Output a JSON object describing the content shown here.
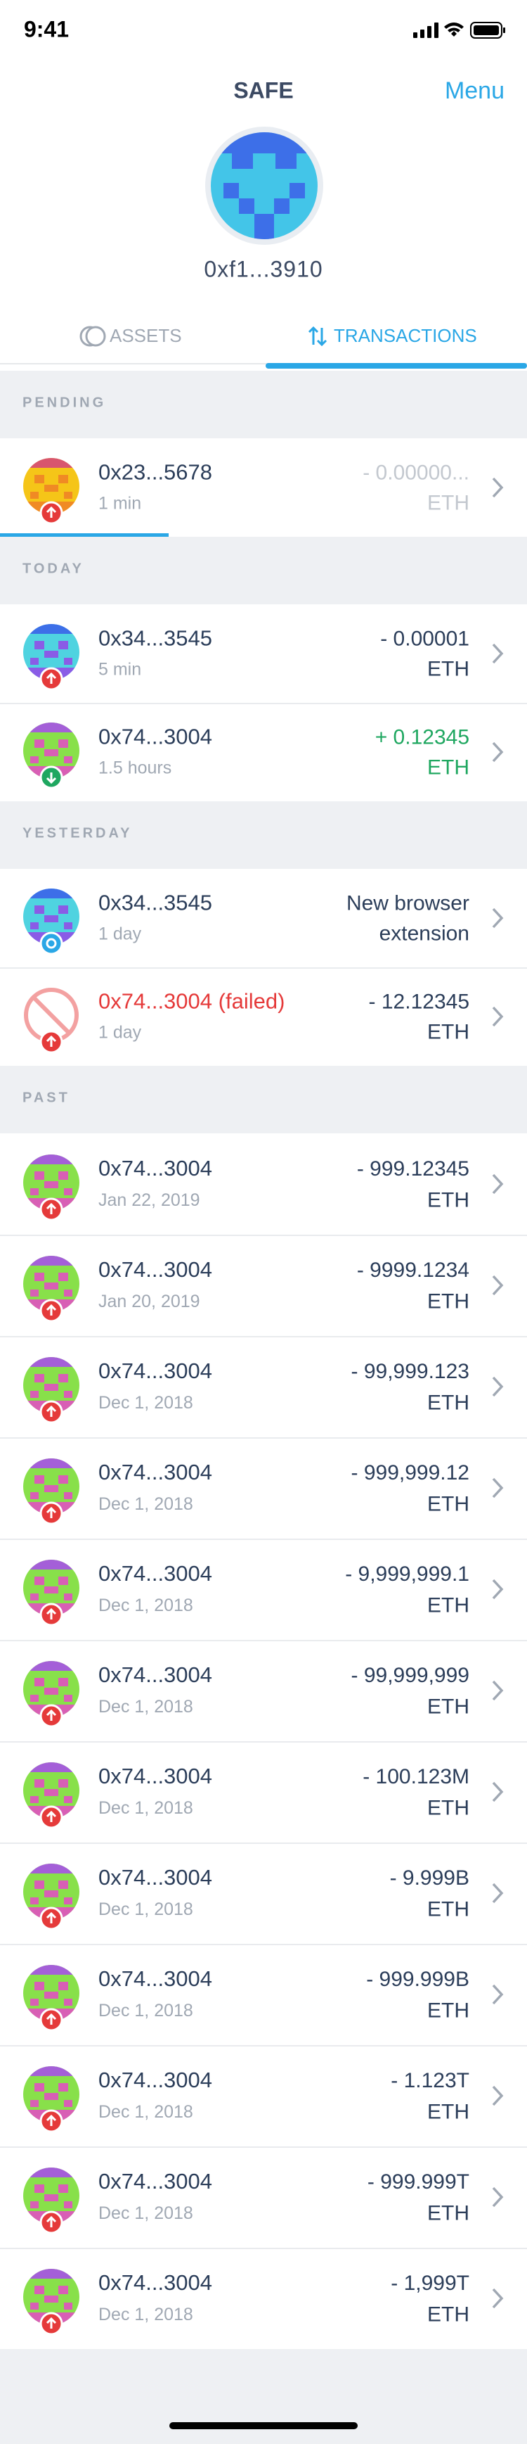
{
  "status_bar": {
    "time": "9:41"
  },
  "header": {
    "title": "SAFE",
    "menu": "Menu",
    "address": "0xf1...3910"
  },
  "tabs": [
    "ASSETS",
    "TRANSACTIONS"
  ],
  "sections": [
    {
      "label": "PENDING",
      "rows": [
        {
          "title": "0x23...5678",
          "subtitle": "1 min",
          "amount": [
            "- 0.00000...",
            "ETH"
          ]
        }
      ]
    },
    {
      "label": "TODAY",
      "rows": [
        {
          "title": "0x34...3545",
          "subtitle": "5 min",
          "amount": [
            "- 0.00001",
            "ETH"
          ]
        },
        {
          "title": "0x74...3004",
          "subtitle": "1.5 hours",
          "amount": [
            "+ 0.12345",
            "ETH"
          ]
        }
      ]
    },
    {
      "label": "YESTERDAY",
      "rows": [
        {
          "title": "0x34...3545",
          "subtitle": "1 day",
          "amount": [
            "New browser",
            "extension"
          ]
        },
        {
          "title": "0x74...3004 (failed)",
          "subtitle": "1 day",
          "amount": [
            "- 12.12345",
            "ETH"
          ]
        }
      ]
    },
    {
      "label": "PAST",
      "rows": [
        {
          "title": "0x74...3004",
          "subtitle": "Jan 22, 2019",
          "amount": [
            "- 999.12345",
            "ETH"
          ]
        },
        {
          "title": "0x74...3004",
          "subtitle": "Jan 20, 2019",
          "amount": [
            "- 9999.1234",
            "ETH"
          ]
        },
        {
          "title": "0x74...3004",
          "subtitle": "Dec 1, 2018",
          "amount": [
            "- 99,999.123",
            "ETH"
          ]
        },
        {
          "title": "0x74...3004",
          "subtitle": "Dec 1, 2018",
          "amount": [
            "- 999,999.12",
            "ETH"
          ]
        },
        {
          "title": "0x74...3004",
          "subtitle": "Dec 1, 2018",
          "amount": [
            "- 9,999,999.1",
            "ETH"
          ]
        },
        {
          "title": "0x74...3004",
          "subtitle": "Dec 1, 2018",
          "amount": [
            "- 99,999,999",
            "ETH"
          ]
        },
        {
          "title": "0x74...3004",
          "subtitle": "Dec 1, 2018",
          "amount": [
            "- 100.123M",
            "ETH"
          ]
        },
        {
          "title": "0x74...3004",
          "subtitle": "Dec 1, 2018",
          "amount": [
            "- 9.999B",
            "ETH"
          ]
        },
        {
          "title": "0x74...3004",
          "subtitle": "Dec 1, 2018",
          "amount": [
            "- 999.999B",
            "ETH"
          ]
        },
        {
          "title": "0x74...3004",
          "subtitle": "Dec 1, 2018",
          "amount": [
            "- 1.123T",
            "ETH"
          ]
        },
        {
          "title": "0x74...3004",
          "subtitle": "Dec 1, 2018",
          "amount": [
            "- 999.999T",
            "ETH"
          ]
        },
        {
          "title": "0x74...3004",
          "subtitle": "Dec 1, 2018",
          "amount": [
            "- 1,999T",
            "ETH"
          ]
        }
      ]
    }
  ]
}
